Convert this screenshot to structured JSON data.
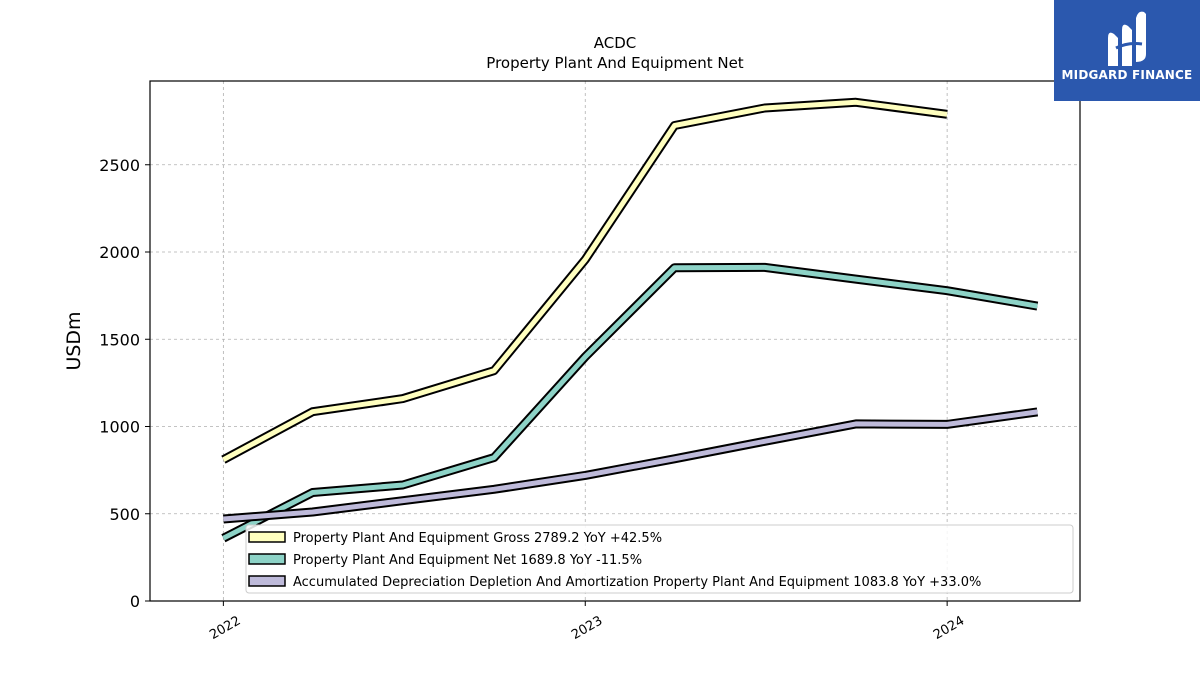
{
  "chart_data": {
    "type": "line",
    "title": "ACDC",
    "subtitle": "Property Plant And Equipment Net",
    "ylabel": "USDm",
    "xlabel": "",
    "ylim": [
      0,
      2980
    ],
    "yticks": [
      0,
      500,
      1000,
      1500,
      2000,
      2500
    ],
    "xlim": [
      "2021-10-19",
      "2024-05-14"
    ],
    "xticks": [
      {
        "date": "2022-01-01",
        "label": "2022"
      },
      {
        "date": "2023-01-01",
        "label": "2023"
      },
      {
        "date": "2024-01-01",
        "label": "2024"
      }
    ],
    "grid": true,
    "legend_position": "lower-right",
    "series": [
      {
        "name": "Property Plant And Equipment Gross",
        "legend": "Property Plant And Equipment Gross  2789.2 YoY +42.5%",
        "color": "#ffffbf",
        "points": [
          {
            "date": "2022-01-01",
            "value": 810
          },
          {
            "date": "2022-04-01",
            "value": 1085
          },
          {
            "date": "2022-07-01",
            "value": 1160
          },
          {
            "date": "2022-10-01",
            "value": 1320
          },
          {
            "date": "2023-01-01",
            "value": 1957
          },
          {
            "date": "2023-04-01",
            "value": 2725
          },
          {
            "date": "2023-07-01",
            "value": 2825
          },
          {
            "date": "2023-10-01",
            "value": 2858
          },
          {
            "date": "2024-01-01",
            "value": 2789.2
          }
        ]
      },
      {
        "name": "Property Plant And Equipment Net",
        "legend": "Property Plant And Equipment Net  1689.8 YoY -11.5%",
        "color": "#8dd3c7",
        "points": [
          {
            "date": "2022-01-01",
            "value": 360
          },
          {
            "date": "2022-04-01",
            "value": 622
          },
          {
            "date": "2022-07-01",
            "value": 665
          },
          {
            "date": "2022-10-01",
            "value": 822
          },
          {
            "date": "2023-01-01",
            "value": 1400
          },
          {
            "date": "2023-04-01",
            "value": 1910
          },
          {
            "date": "2023-07-01",
            "value": 1912
          },
          {
            "date": "2023-10-01",
            "value": 1845
          },
          {
            "date": "2024-01-01",
            "value": 1778
          },
          {
            "date": "2024-04-01",
            "value": 1689.8
          }
        ]
      },
      {
        "name": "Accumulated Depreciation Depletion And Amortization Property Plant And Equipment",
        "legend": "Accumulated Depreciation Depletion And Amortization Property Plant And Equipment  1083.8 YoY +33.0%",
        "color": "#bebada",
        "points": [
          {
            "date": "2022-01-01",
            "value": 470
          },
          {
            "date": "2022-04-01",
            "value": 510
          },
          {
            "date": "2022-07-01",
            "value": 575
          },
          {
            "date": "2022-10-01",
            "value": 640
          },
          {
            "date": "2023-01-01",
            "value": 720
          },
          {
            "date": "2023-04-01",
            "value": 815
          },
          {
            "date": "2023-07-01",
            "value": 915
          },
          {
            "date": "2023-10-01",
            "value": 1015
          },
          {
            "date": "2024-01-01",
            "value": 1012
          },
          {
            "date": "2024-04-01",
            "value": 1083.8
          }
        ]
      }
    ]
  },
  "logo": {
    "text": "MIDGARD FINANCE",
    "icon": "midgard-logo-icon",
    "background": "#2b58ae"
  }
}
